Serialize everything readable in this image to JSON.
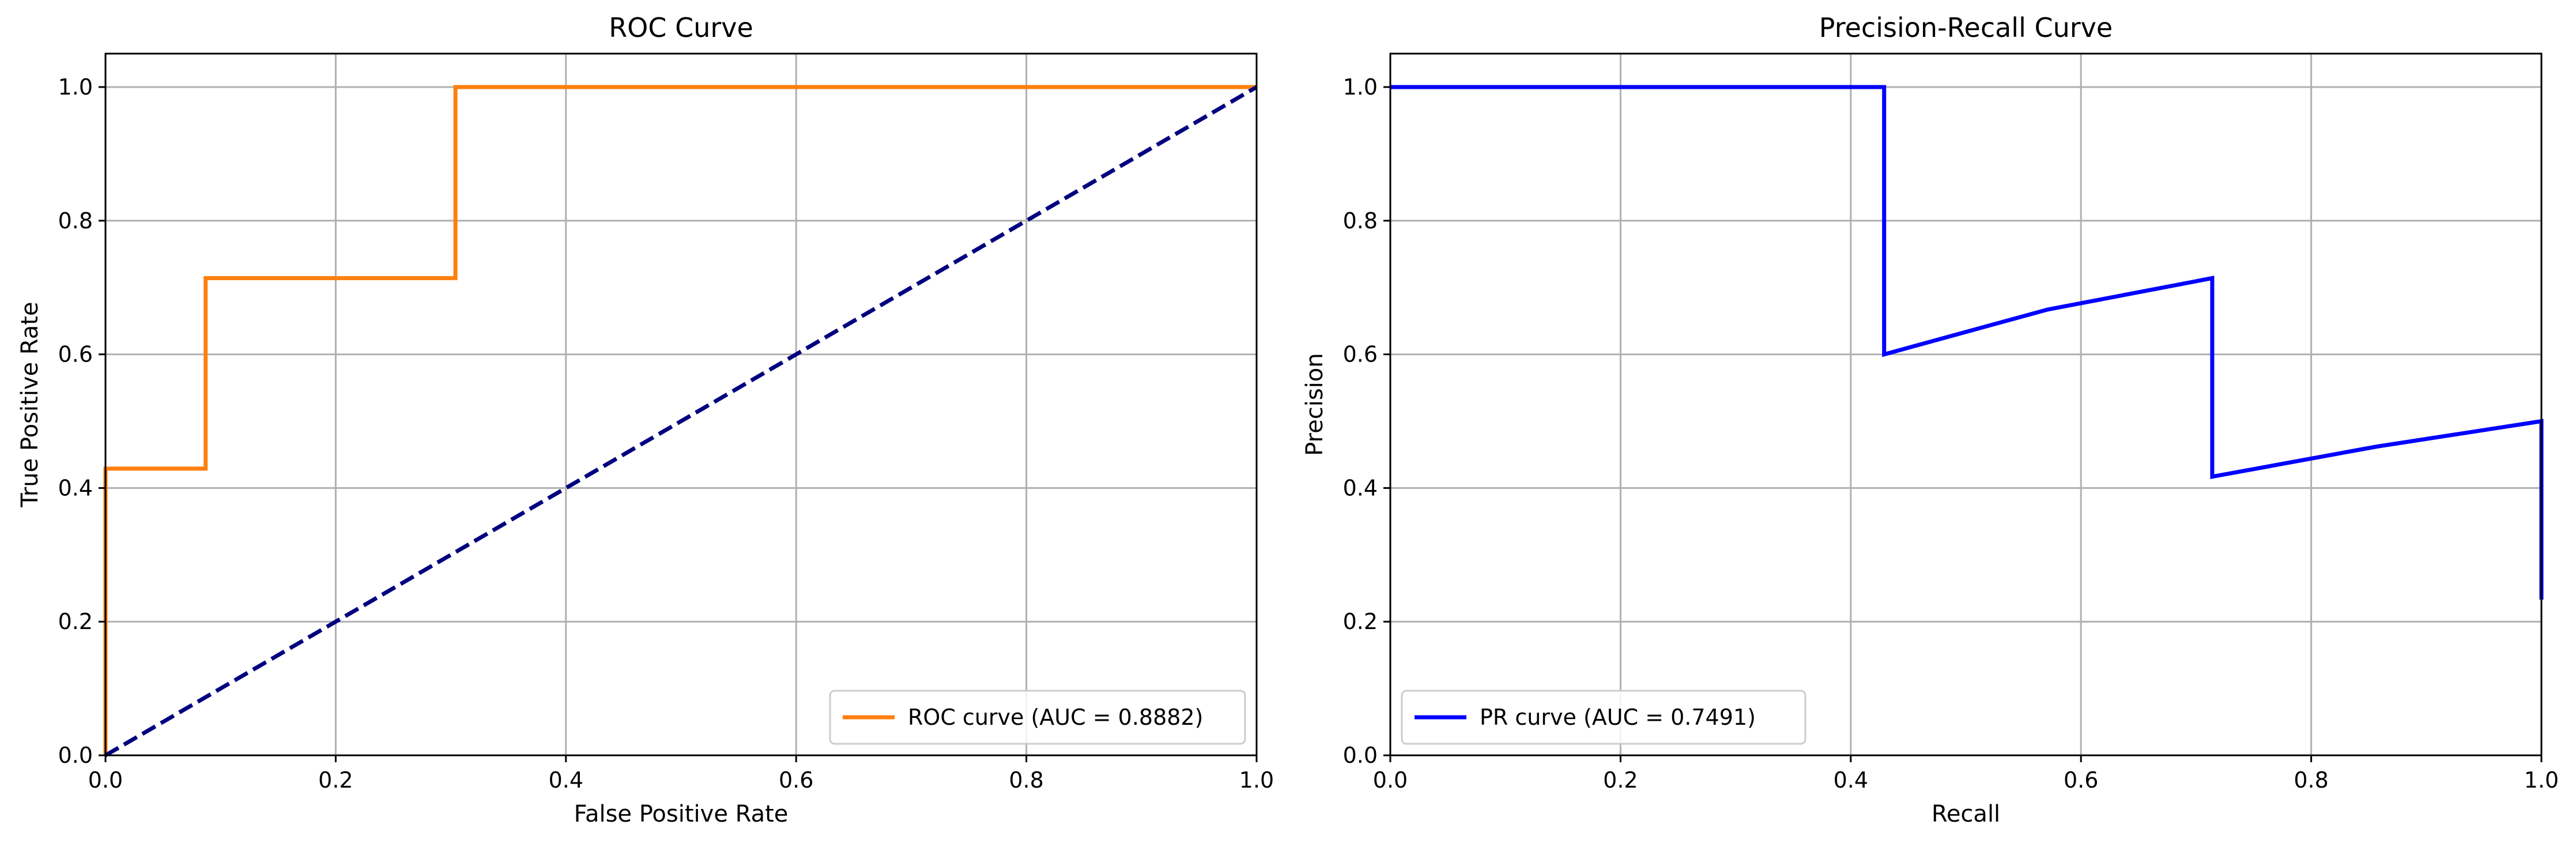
{
  "chart_data": [
    {
      "type": "line",
      "title": "ROC Curve",
      "xlabel": "False Positive Rate",
      "ylabel": "True Positive Rate",
      "xlim": [
        0,
        1
      ],
      "ylim": [
        0,
        1.05
      ],
      "xticks": [
        "0.0",
        "0.2",
        "0.4",
        "0.6",
        "0.8",
        "1.0"
      ],
      "yticks": [
        "0.0",
        "0.2",
        "0.4",
        "0.6",
        "0.8",
        "1.0"
      ],
      "grid": true,
      "legend_position": "lower-right",
      "series": [
        {
          "name": "ROC curve (AUC = 0.8882)",
          "color": "#ff7f0e",
          "line_style": "solid",
          "x": [
            0.0,
            0.0,
            0.087,
            0.087,
            0.304,
            0.304,
            1.0
          ],
          "y": [
            0.0,
            0.429,
            0.429,
            0.714,
            0.714,
            1.0,
            1.0
          ]
        },
        {
          "name": "",
          "color": "#000080",
          "line_style": "dashed",
          "x": [
            0.0,
            1.0
          ],
          "y": [
            0.0,
            1.0
          ]
        }
      ]
    },
    {
      "type": "line",
      "title": "Precision-Recall Curve",
      "xlabel": "Recall",
      "ylabel": "Precision",
      "xlim": [
        0,
        1
      ],
      "ylim": [
        0,
        1.05
      ],
      "xticks": [
        "0.0",
        "0.2",
        "0.4",
        "0.6",
        "0.8",
        "1.0"
      ],
      "yticks": [
        "0.0",
        "0.2",
        "0.4",
        "0.6",
        "0.8",
        "1.0"
      ],
      "grid": true,
      "legend_position": "lower-left",
      "series": [
        {
          "name": "PR curve (AUC = 0.7491)",
          "color": "#0000ff",
          "line_style": "solid",
          "x": [
            0.0,
            0.429,
            0.429,
            0.571,
            0.714,
            0.714,
            0.857,
            1.0,
            1.0
          ],
          "y": [
            1.0,
            1.0,
            0.6,
            0.667,
            0.714,
            0.417,
            0.462,
            0.5,
            0.233
          ]
        }
      ]
    }
  ]
}
